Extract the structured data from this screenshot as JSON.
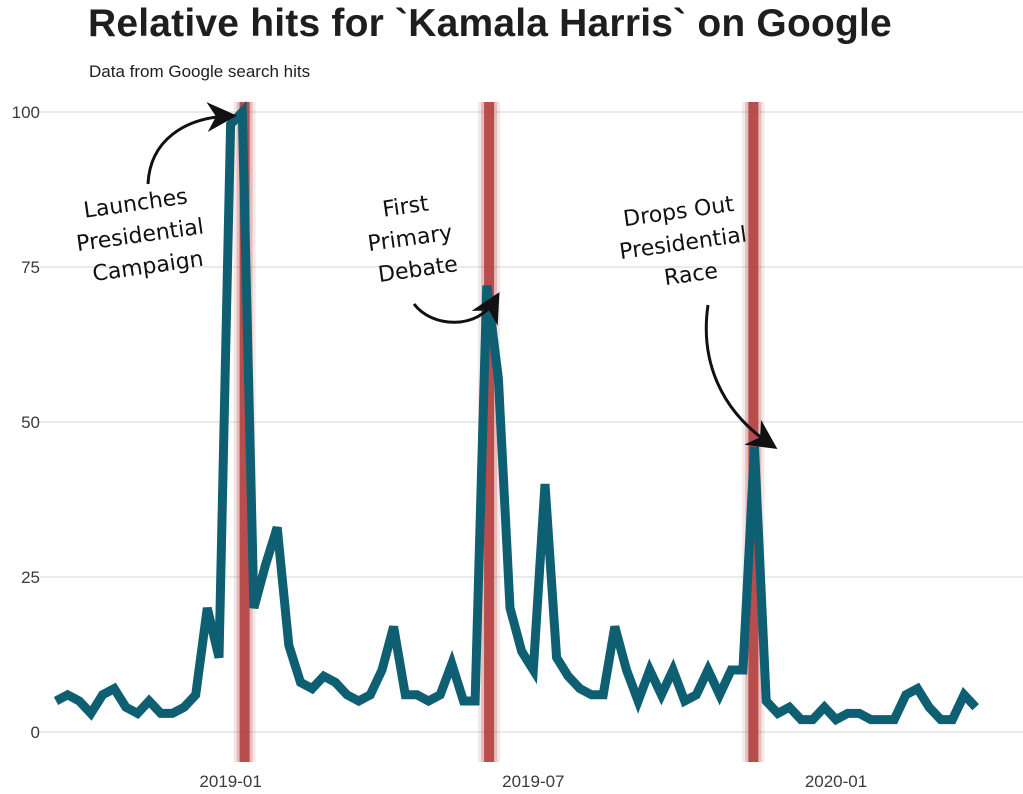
{
  "page": {
    "title": "Relative hits for `Kamala Harris` on Google",
    "subtitle": "Data from Google search hits"
  },
  "colors": {
    "line": "#0f5f72",
    "event": "#b03a3a",
    "grid": "#d6d6d6",
    "text": "#1e1e1e"
  },
  "chart_data": {
    "type": "line",
    "title": "Relative hits for `Kamala Harris` on Google",
    "subtitle": "Data from Google search hits",
    "xlabel": "",
    "ylabel": "",
    "ylim": [
      0,
      100
    ],
    "yticks": [
      0,
      25,
      50,
      75,
      100
    ],
    "x_range_weeks": [
      0,
      81
    ],
    "xticks": [
      {
        "label": "2019-01",
        "week": 15
      },
      {
        "label": "2019-07",
        "week": 41
      },
      {
        "label": "2020-01",
        "week": 67
      }
    ],
    "series": [
      {
        "name": "Kamala Harris",
        "values": [
          5,
          6,
          5,
          3,
          6,
          7,
          4,
          3,
          5,
          3,
          3,
          4,
          6,
          20,
          12,
          98,
          100,
          20,
          27,
          33,
          14,
          8,
          7,
          9,
          8,
          6,
          5,
          6,
          10,
          17,
          6,
          6,
          5,
          6,
          11,
          5,
          5,
          72,
          57,
          20,
          13,
          10,
          40,
          12,
          9,
          7,
          6,
          6,
          17,
          10,
          5,
          10,
          6,
          10,
          5,
          6,
          10,
          6,
          10,
          10,
          46,
          5,
          3,
          4,
          2,
          2,
          4,
          2,
          3,
          3,
          2,
          2,
          2,
          6,
          7,
          4,
          2,
          2,
          6,
          4
        ]
      }
    ],
    "events": [
      {
        "week": 16.2,
        "label": [
          "Launches",
          "Presidential",
          "Campaign"
        ]
      },
      {
        "week": 37.2,
        "label": [
          "First",
          "Primary",
          "Debate"
        ]
      },
      {
        "week": 59.9,
        "label": [
          "Drops Out",
          "Presidential",
          "Race"
        ]
      }
    ]
  }
}
